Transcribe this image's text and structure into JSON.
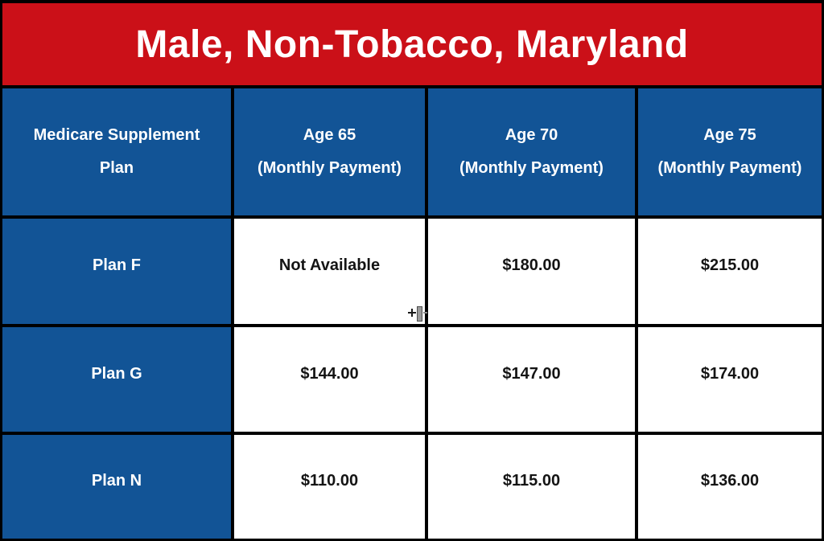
{
  "theme": {
    "banner-red": "#cb1018",
    "cell-blue": "#125496",
    "border-black": "#000000",
    "cell-white": "#ffffff",
    "text-white": "#ffffff",
    "text-dark": "#141414"
  },
  "chart_data": {
    "type": "table",
    "title": "Male, Non-Tobacco, Maryland",
    "columns": [
      "Medicare Supplement Plan",
      "Age 65 (Monthly Payment)",
      "Age 70 (Monthly Payment)",
      "Age 75 (Monthly Payment)"
    ],
    "rows": [
      [
        "Plan F",
        "Not Available",
        "$180.00",
        "$215.00"
      ],
      [
        "Plan G",
        "$144.00",
        "$147.00",
        "$174.00"
      ],
      [
        "Plan N",
        "$110.00",
        "$115.00",
        "$136.00"
      ]
    ]
  },
  "header_lines": [
    [
      "Medicare Supplement",
      "Plan"
    ],
    [
      "Age 65",
      "(Monthly Payment)"
    ],
    [
      "Age 70",
      "(Monthly Payment)"
    ],
    [
      "Age 75",
      "(Monthly Payment)"
    ]
  ],
  "cursor": {
    "name": "column-resize-cursor"
  }
}
